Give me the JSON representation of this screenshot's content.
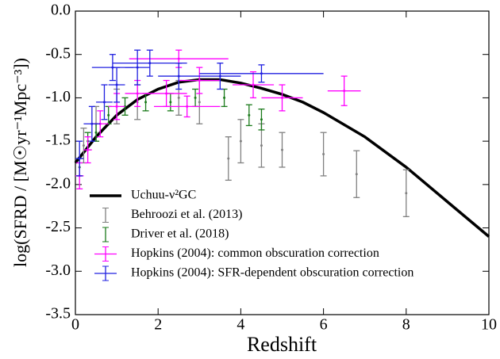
{
  "chart_data": {
    "type": "errorbar",
    "xlabel": "Redshift",
    "ylabel": "log(SFRD / [M☉yr⁻¹Mpc⁻³])",
    "xlim": [
      0,
      10
    ],
    "xticks": [
      0,
      2,
      4,
      6,
      8,
      10
    ],
    "ylim": [
      -3.5,
      0
    ],
    "yticks": [
      {
        "value": 0,
        "label": "0.0"
      },
      -0.5,
      {
        "value": -1,
        "label": "-1.0"
      },
      -1.5,
      {
        "value": -2,
        "label": "-2.0"
      },
      -2.5,
      {
        "value": -3,
        "label": "-3.0"
      },
      -3.5
    ],
    "legend": "lower left",
    "series": [
      {
        "name": "Uchuu-ν²GC",
        "type": "line",
        "color": "#000000",
        "x": [
          0,
          0.5,
          1,
          1.5,
          2,
          2.5,
          3,
          3.5,
          4,
          4.5,
          5,
          5.5,
          6,
          7,
          8,
          9,
          10
        ],
        "values": [
          -1.75,
          -1.45,
          -1.2,
          -1.02,
          -0.9,
          -0.82,
          -0.79,
          -0.79,
          -0.83,
          -0.89,
          -0.96,
          -1.05,
          -1.17,
          -1.45,
          -1.8,
          -2.2,
          -2.6
        ]
      },
      {
        "name": "Behroozi et al. (2013)",
        "type": "errorbar",
        "color": "#808080",
        "x": [
          0.2,
          0.5,
          1,
          1.5,
          2.5,
          3,
          3.7,
          4,
          4.5,
          5,
          6,
          6.8,
          8
        ],
        "values": [
          -1.55,
          -1.3,
          -1.1,
          -1.05,
          -1.0,
          -1.05,
          -1.7,
          -1.5,
          -1.55,
          -1.6,
          -1.65,
          -1.88,
          -2.1
        ],
        "yerr": [
          0.2,
          0.2,
          0.2,
          0.2,
          0.2,
          0.25,
          0.25,
          0.25,
          0.25,
          0.2,
          0.25,
          0.27,
          0.27
        ]
      },
      {
        "name": "Driver et al. (2018)",
        "type": "errorbar",
        "color": "#1a7a1a",
        "x": [
          0.1,
          0.3,
          0.5,
          0.8,
          1.2,
          1.7,
          2.3,
          2.9,
          3.6,
          4.2,
          4.5
        ],
        "values": [
          -1.8,
          -1.5,
          -1.4,
          -1.2,
          -1.1,
          -1.05,
          -1.05,
          -1.0,
          -1.0,
          -1.2,
          -1.25
        ],
        "yerr": [
          0.1,
          0.1,
          0.1,
          0.1,
          0.1,
          0.1,
          0.1,
          0.1,
          0.1,
          0.12,
          0.12
        ]
      },
      {
        "name": "Hopkins (2004): common obscuration correction",
        "type": "errorbar",
        "color": "#ff00ff",
        "x": [
          0.1,
          0.3,
          0.6,
          1.0,
          1.5,
          2.2,
          2.7,
          3.0,
          2.5,
          4.3,
          5.0,
          6.5
        ],
        "values": [
          -1.9,
          -1.6,
          -1.3,
          -1.1,
          -0.95,
          -0.95,
          -1.1,
          -0.8,
          -0.55,
          -0.85,
          -1.0,
          -0.92
        ],
        "yerr": [
          0.15,
          0.15,
          0.15,
          0.15,
          0.15,
          0.15,
          0.12,
          0.15,
          0.1,
          0.15,
          0.15,
          0.17
        ],
        "xerr": [
          0.1,
          0.1,
          0.2,
          0.2,
          0.3,
          0.5,
          0.8,
          0.5,
          1.2,
          0.5,
          0.5,
          0.4
        ]
      },
      {
        "name": "Hopkins (2004): SFR-dependent obscuration correction",
        "type": "errorbar",
        "color": "#2020e0",
        "x": [
          0.1,
          0.4,
          0.7,
          1.0,
          0.9,
          1.5,
          1.8,
          2.5,
          3.5,
          4.5
        ],
        "values": [
          -1.7,
          -1.3,
          -1.05,
          -0.85,
          -0.65,
          -0.65,
          -0.6,
          -0.75,
          -0.75,
          -0.72
        ],
        "yerr": [
          0.2,
          0.2,
          0.2,
          0.2,
          0.15,
          0.2,
          0.15,
          0.15,
          0.15,
          0.1
        ],
        "xerr": [
          0.1,
          0.2,
          0.2,
          0.2,
          0.5,
          0.3,
          0.9,
          0.5,
          0.5,
          1.5
        ]
      }
    ]
  }
}
